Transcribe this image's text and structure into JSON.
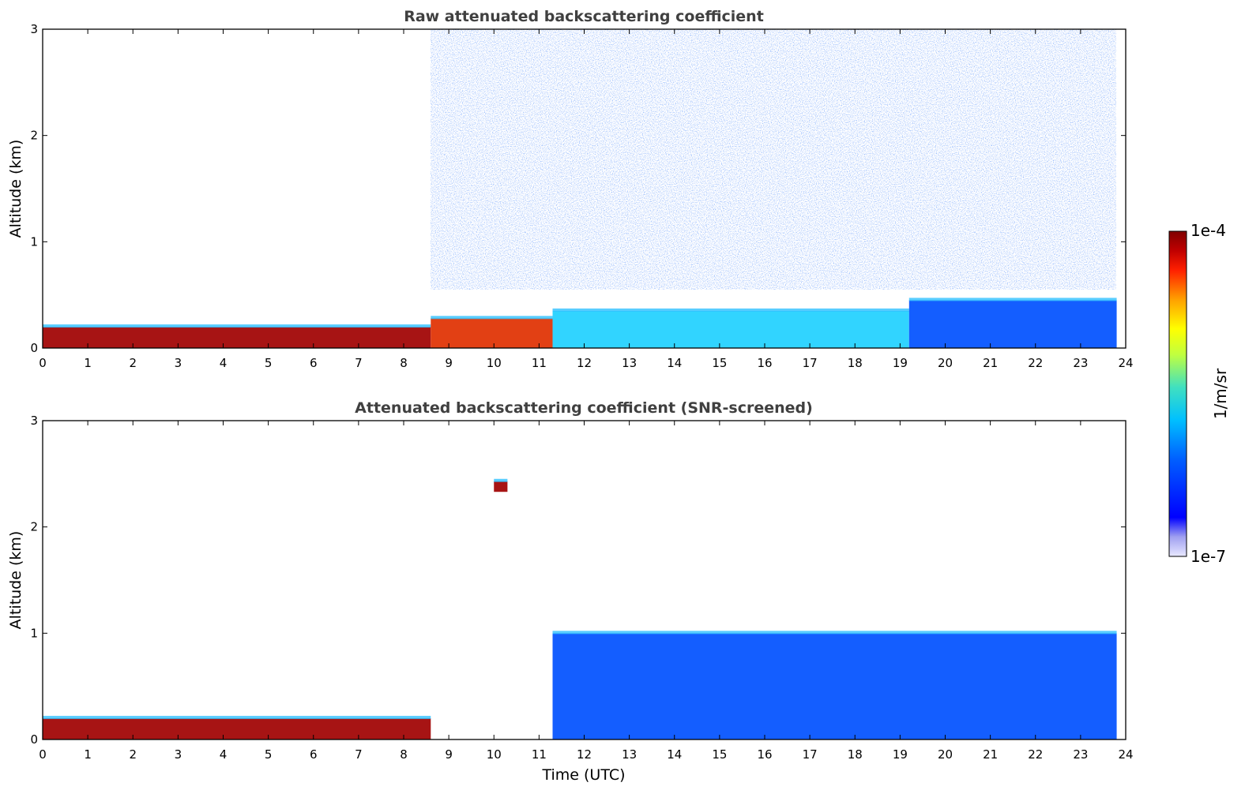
{
  "chart_data": [
    {
      "type": "heatmap",
      "title": "Raw attenuated backscattering coefficient",
      "xlabel": "",
      "ylabel": "Altitude (km)",
      "xlim": [
        0,
        24
      ],
      "ylim": [
        0,
        3
      ],
      "xticks": [
        "0",
        "1",
        "2",
        "3",
        "4",
        "5",
        "6",
        "7",
        "8",
        "9",
        "10",
        "11",
        "12",
        "13",
        "14",
        "15",
        "16",
        "17",
        "18",
        "19",
        "20",
        "21",
        "22",
        "23",
        "24"
      ],
      "yticks": [
        "0",
        "1",
        "2",
        "3"
      ],
      "regions": [
        {
          "t_start": 0,
          "t_end": 8.6,
          "base_km": 0.0,
          "top_km": 0.2,
          "level": "1e-4",
          "note": "dense aerosol layer"
        },
        {
          "t_start": 8.6,
          "t_end": 11.3,
          "base_km": 0.0,
          "top_km": 0.28,
          "level": "3e-5"
        },
        {
          "t_start": 11.3,
          "t_end": 19.2,
          "base_km": 0.0,
          "top_km": 0.35,
          "level": "5e-6"
        },
        {
          "t_start": 19.2,
          "t_end": 23.8,
          "base_km": 0.0,
          "top_km": 0.45,
          "level": "1e-6"
        },
        {
          "t_start": 8.6,
          "t_end": 23.8,
          "base_km": 0.3,
          "top_km": 3.0,
          "level": "3e-7",
          "note": "noise"
        }
      ]
    },
    {
      "type": "heatmap",
      "title": "Attenuated backscattering coefficient (SNR-screened)",
      "xlabel": "Time (UTC)",
      "ylabel": "Altitude (km)",
      "xlim": [
        0,
        24
      ],
      "ylim": [
        0,
        3
      ],
      "xticks": [
        "0",
        "1",
        "2",
        "3",
        "4",
        "5",
        "6",
        "7",
        "8",
        "9",
        "10",
        "11",
        "12",
        "13",
        "14",
        "15",
        "16",
        "17",
        "18",
        "19",
        "20",
        "21",
        "22",
        "23",
        "24"
      ],
      "yticks": [
        "0",
        "1",
        "2",
        "3"
      ],
      "regions": [
        {
          "t_start": 0,
          "t_end": 8.6,
          "base_km": 0.0,
          "top_km": 0.2,
          "level": "1e-4"
        },
        {
          "t_start": 11.3,
          "t_end": 23.8,
          "base_km": 0.0,
          "top_km": 1.0,
          "level": "1e-6"
        },
        {
          "t_start": 10.0,
          "t_end": 10.3,
          "base_km": 2.33,
          "top_km": 2.43,
          "level": "1e-4",
          "note": "isolated cloud"
        }
      ]
    }
  ],
  "colorbar": {
    "label": "1/m/sr",
    "max_label": "1e-4",
    "min_label": "1e-7",
    "scale": "log",
    "colormap": [
      "#e8e8ff",
      "#a0a0f0",
      "#0000ff",
      "#0060ff",
      "#00c0ff",
      "#40e0c0",
      "#c0ff40",
      "#ffff00",
      "#ffa000",
      "#ff2000",
      "#c00000",
      "#800000"
    ]
  }
}
